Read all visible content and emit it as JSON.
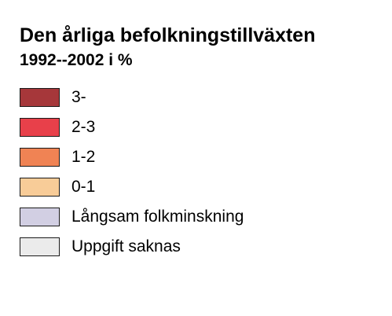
{
  "legend": {
    "title": "Den årliga befolkningstillväxten",
    "subtitle": "1992--2002 i %",
    "items": [
      {
        "label": "3-",
        "color": "#a6373a"
      },
      {
        "label": "2-3",
        "color": "#e8404a"
      },
      {
        "label": "1-2",
        "color": "#f08354"
      },
      {
        "label": "0-1",
        "color": "#f8cc98"
      },
      {
        "label": "Långsam folkminskning",
        "color": "#d2cfe3"
      },
      {
        "label": "Uppgift saknas",
        "color": "#ebebeb"
      }
    ]
  }
}
